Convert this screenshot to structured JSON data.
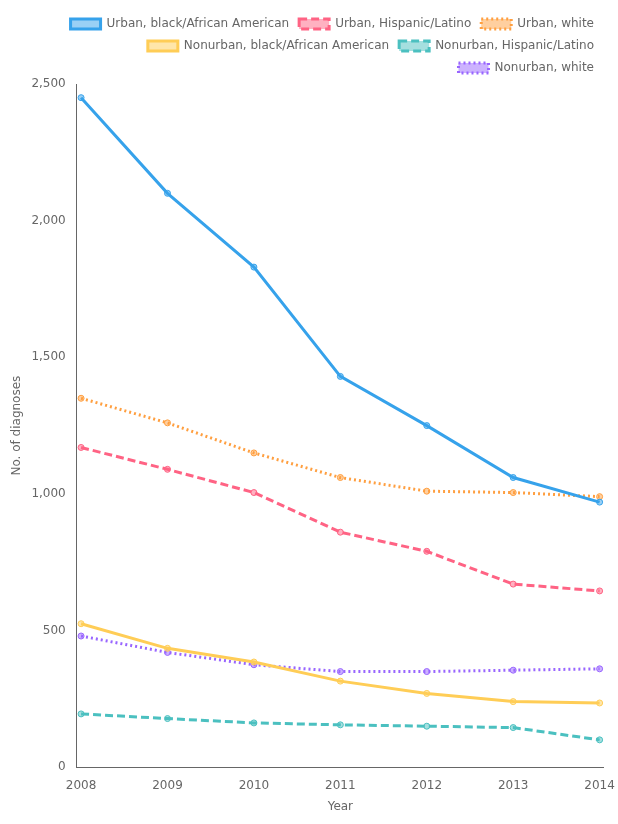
{
  "chart_data": {
    "type": "line",
    "x": [
      2008,
      2009,
      2010,
      2011,
      2012,
      2013,
      2014
    ],
    "series": [
      {
        "name": "Urban, black/African American",
        "values": [
          2450,
          2100,
          1830,
          1430,
          1250,
          1060,
          970
        ],
        "line_style": "solid"
      },
      {
        "name": "Urban, Hispanic/Latino",
        "values": [
          1170,
          1090,
          1005,
          860,
          790,
          670,
          645
        ],
        "line_style": "dashed"
      },
      {
        "name": "Urban, white",
        "values": [
          1350,
          1260,
          1150,
          1060,
          1010,
          1005,
          990
        ],
        "line_style": "dotted"
      },
      {
        "name": "Nonurban, black/African American",
        "values": [
          525,
          435,
          385,
          315,
          270,
          240,
          235
        ],
        "line_style": "solid"
      },
      {
        "name": "Nonurban, Hispanic/Latino",
        "values": [
          195,
          178,
          162,
          155,
          150,
          145,
          100
        ],
        "line_style": "dashed"
      },
      {
        "name": "Nonurban, white",
        "values": [
          480,
          420,
          375,
          350,
          350,
          355,
          360
        ],
        "line_style": "dotted"
      }
    ],
    "xlabel": "Year",
    "ylabel": "No. of diagnoses",
    "xlim": [
      2007.95,
      2014.05
    ],
    "xticks": [
      2008,
      2009,
      2010,
      2011,
      2012,
      2013,
      2014
    ],
    "ylim": [
      0,
      2500
    ],
    "yticks": [
      0,
      500,
      {
        "value": 1000,
        "label": "1,000"
      },
      {
        "value": 1500,
        "label": "1,500"
      },
      {
        "value": 2000,
        "label": "2,000"
      },
      {
        "value": 2500,
        "label": "2,500"
      }
    ],
    "grid": false,
    "legend": "upper right"
  }
}
